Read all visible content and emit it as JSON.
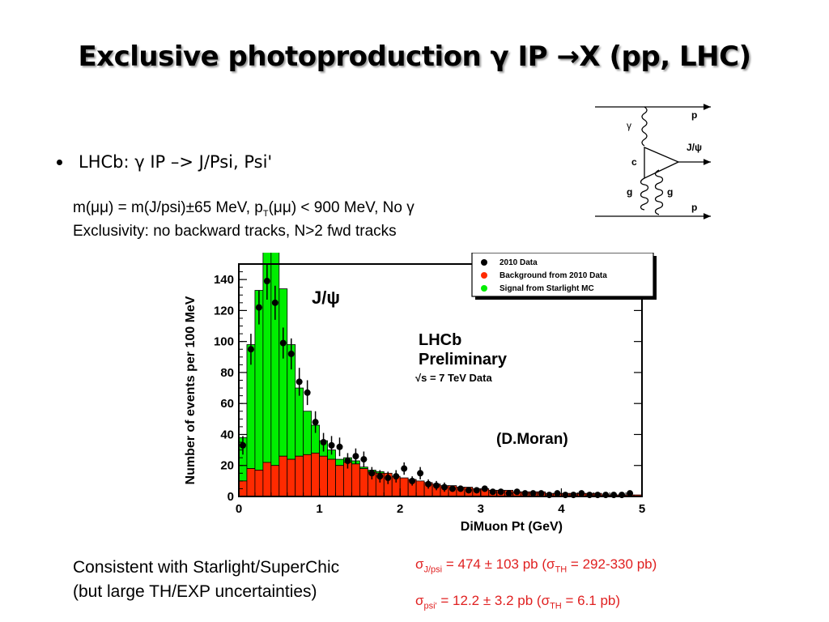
{
  "slide": {
    "title": "Exclusive photoproduction γ IP →X (pp, LHC)",
    "bullet": "LHCb: γ IP –> J/Psi, Psi'",
    "cut_line_1_parts": {
      "a": "m(μμ) = m(J/psi)±65 MeV, p",
      "sub": "T",
      "b": "(μμ) < 900 MeV, No γ"
    },
    "cut_line_2": "Exclusivity: no backward tracks, N>2 fwd tracks",
    "consistent_1": "Consistent with Starlight/SuperChic",
    "consistent_2": "(but large TH/EXP uncertainties)",
    "sigma_jpsi": {
      "symbol": "σ",
      "sub": "J/psi",
      "value": " = 474 ± 103 pb (",
      "th_symbol": "σ",
      "th_sub": "TH",
      "th_value": " = 292-330 pb)"
    },
    "sigma_psi2s": {
      "symbol": "σ",
      "sub": "psi'",
      "value": " = 12.2 ± 3.2 pb (",
      "th_symbol": "σ",
      "th_sub": "TH",
      "th_value": " = 6.1 pb)"
    }
  },
  "diagram": {
    "labels": {
      "gamma": "γ",
      "p_top": "p",
      "jpsi": "J/ψ",
      "c": "c",
      "g_left": "g",
      "g_right": "g",
      "p_bottom": "p"
    }
  },
  "chart_data": {
    "type": "bar",
    "title": "J/ψ",
    "xlabel": "DiMuon Pt (GeV)",
    "ylabel": "Number of events per 100 MeV",
    "xlim": [
      0,
      5
    ],
    "ylim": [
      0,
      150
    ],
    "xticks": [
      "0",
      "1",
      "2",
      "3",
      "4",
      "5"
    ],
    "yticks": [
      "0",
      "20",
      "40",
      "60",
      "80",
      "100",
      "120",
      "140"
    ],
    "annotations": {
      "lhcb": "LHCb",
      "preliminary": "Preliminary",
      "energy": "√s = 7 TeV Data",
      "credit": "(D.Moran)"
    },
    "legend": {
      "placement": "top-right",
      "entries": [
        "2010 Data",
        "Background from 2010 Data",
        "Signal from Starlight MC"
      ],
      "colors": [
        "#000000",
        "#ff2a00",
        "#00ee00"
      ]
    },
    "bin_width": 0.1,
    "bin_edges_start": [
      0.0,
      0.1,
      0.2,
      0.3,
      0.4,
      0.5,
      0.6,
      0.7,
      0.8,
      0.9,
      1.0,
      1.1,
      1.2,
      1.3,
      1.4,
      1.5,
      1.6,
      1.7,
      1.8,
      1.9,
      2.0,
      2.1,
      2.2,
      2.3,
      2.4,
      2.5,
      2.6,
      2.7,
      2.8,
      2.9,
      3.0,
      3.1,
      3.2,
      3.3,
      3.4,
      3.5,
      3.6,
      3.7,
      3.8,
      3.9,
      4.0,
      4.1,
      4.2,
      4.3,
      4.4,
      4.5,
      4.6,
      4.7,
      4.8,
      4.9
    ],
    "series": [
      {
        "name": "Background from 2010 Data",
        "values": [
          10,
          18,
          17,
          22,
          20,
          26,
          24,
          26,
          27,
          28,
          26,
          24,
          20,
          22,
          21,
          18,
          16,
          15,
          15,
          13,
          12,
          11,
          10,
          9,
          8,
          7,
          7,
          6,
          6,
          5,
          5,
          4,
          4,
          4,
          3,
          3,
          3,
          3,
          2,
          2,
          2,
          2,
          2,
          2,
          2,
          1,
          1,
          1,
          1,
          1
        ]
      },
      {
        "name": "Signal from Starlight MC",
        "values": [
          28,
          80,
          116,
          140,
          140,
          108,
          74,
          44,
          28,
          18,
          10,
          6,
          4,
          3,
          2,
          1,
          1,
          1,
          0,
          0,
          0,
          0,
          0,
          0,
          0,
          0,
          0,
          0,
          0,
          0,
          0,
          0,
          0,
          0,
          0,
          0,
          0,
          0,
          0,
          0,
          0,
          0,
          0,
          0,
          0,
          0,
          0,
          0,
          0,
          0
        ]
      },
      {
        "name": "2010 Data",
        "x": [
          0.05,
          0.15,
          0.25,
          0.35,
          0.45,
          0.55,
          0.65,
          0.75,
          0.85,
          0.95,
          1.05,
          1.15,
          1.25,
          1.35,
          1.45,
          1.55,
          1.65,
          1.75,
          1.85,
          1.95,
          2.05,
          2.15,
          2.25,
          2.35,
          2.45,
          2.55,
          2.65,
          2.75,
          2.85,
          2.95,
          3.05,
          3.15,
          3.25,
          3.35,
          3.45,
          3.55,
          3.65,
          3.75,
          3.85,
          3.95,
          4.05,
          4.15,
          4.25,
          4.35,
          4.45,
          4.55,
          4.65,
          4.75,
          4.85
        ],
        "values": [
          33,
          95,
          122,
          139,
          125,
          99,
          92,
          74,
          67,
          48,
          35,
          33,
          32,
          23,
          26,
          24,
          15,
          13,
          12,
          13,
          18,
          10,
          15,
          8,
          7,
          6,
          5,
          5,
          4,
          4,
          5,
          3,
          3,
          2,
          3,
          2,
          2,
          2,
          1,
          2,
          1,
          1,
          2,
          1,
          1,
          1,
          1,
          1,
          2
        ],
        "errors": [
          6,
          10,
          11,
          12,
          11,
          10,
          10,
          9,
          8,
          7,
          6,
          6,
          6,
          5,
          5,
          5,
          4,
          4,
          4,
          4,
          4,
          3,
          4,
          3,
          3,
          3,
          2,
          2,
          2,
          2,
          2,
          2,
          2,
          1,
          2,
          1,
          1,
          1,
          1,
          1,
          1,
          1,
          1,
          1,
          1,
          1,
          1,
          1,
          1
        ]
      }
    ]
  }
}
